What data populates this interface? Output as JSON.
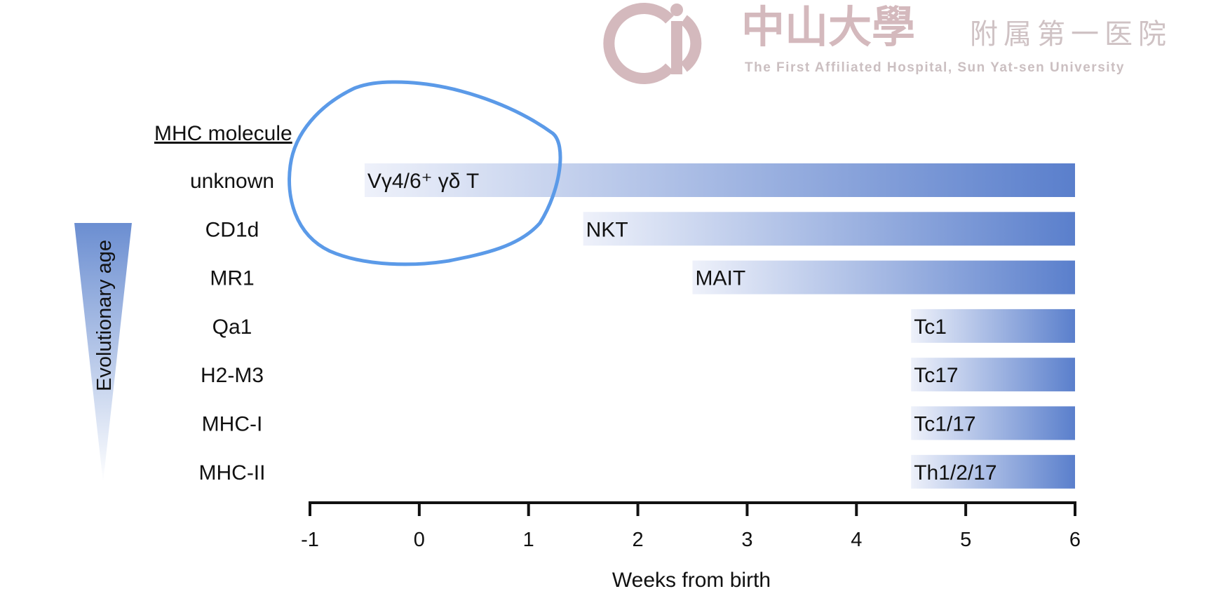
{
  "logo": {
    "name_cn_main": "中山大學",
    "name_cn_sub": "附属第一医院",
    "name_en": "The First Affiliated Hospital, Sun Yat-sen University",
    "color": "#d4b9bd"
  },
  "left_axis": {
    "header": "MHC molecule",
    "evolution_label": "Evolutionary age"
  },
  "chart_data": {
    "type": "bar",
    "orientation": "horizontal",
    "xlabel": "Weeks from birth",
    "xlim": [
      -1,
      6
    ],
    "xticks": [
      -1,
      0,
      1,
      2,
      3,
      4,
      5,
      6
    ],
    "categories": [
      "unknown",
      "CD1d",
      "MR1",
      "Qa1",
      "H2-M3",
      "MHC-I",
      "MHC-II"
    ],
    "bars": [
      {
        "category": "unknown",
        "label": "Vγ4/6⁺ γδ T",
        "start": -0.5,
        "end": 6
      },
      {
        "category": "CD1d",
        "label": "NKT",
        "start": 1.5,
        "end": 6
      },
      {
        "category": "MR1",
        "label": "MAIT",
        "start": 2.5,
        "end": 6
      },
      {
        "category": "Qa1",
        "label": "Tc1",
        "start": 4.5,
        "end": 6
      },
      {
        "category": "H2-M3",
        "label": "Tc17",
        "start": 4.5,
        "end": 6
      },
      {
        "category": "MHC-I",
        "label": "Tc1/17",
        "start": 4.5,
        "end": 6
      },
      {
        "category": "MHC-II",
        "label": "Th1/2/17",
        "start": 4.5,
        "end": 6
      }
    ],
    "bar_gradient": {
      "from": "#eef1fa",
      "to": "#5a7fcc"
    },
    "annotation": {
      "type": "hand-drawn-circle",
      "around": "unknown",
      "color": "#5b9ae8"
    }
  }
}
